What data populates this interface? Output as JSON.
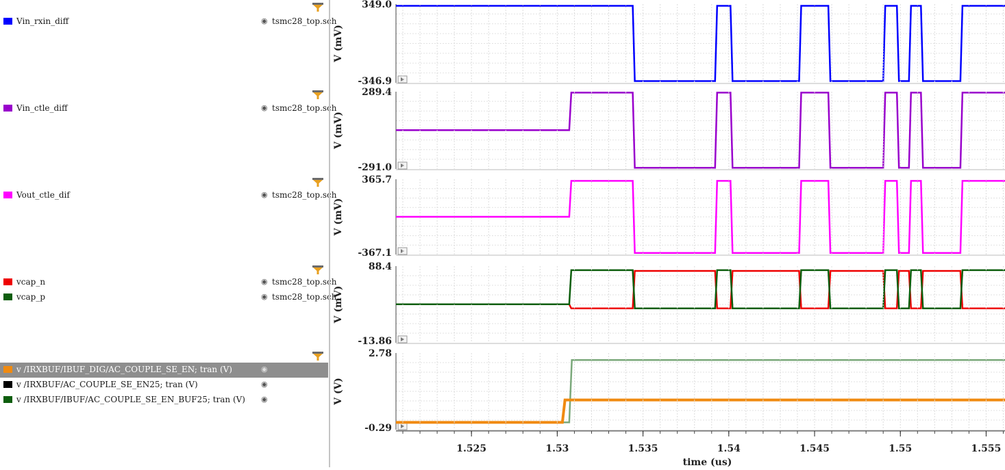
{
  "panels": [
    {
      "filter_icon": "filter-icon",
      "signals": [
        {
          "name": "Vin_rxin_diff",
          "source": "tsmc28_top.sch",
          "color": "#0000ff"
        }
      ]
    },
    {
      "filter_icon": "filter-icon",
      "signals": [
        {
          "name": "Vin_ctle_diff",
          "source": "tsmc28_top.sch",
          "color": "#9900cc"
        }
      ]
    },
    {
      "filter_icon": "filter-icon",
      "signals": [
        {
          "name": "Vout_ctle_dif",
          "source": "tsmc28_top.sch",
          "color": "#ff00ff"
        }
      ]
    },
    {
      "filter_icon": "filter-icon",
      "signals": [
        {
          "name": "vcap_n",
          "source": "tsmc28_top.sch",
          "color": "#ee0000"
        },
        {
          "name": "vcap_p",
          "source": "tsmc28_top.sch",
          "color": "#0d5e0d"
        }
      ]
    },
    {
      "filter_icon": "filter-icon",
      "signals": [
        {
          "name": "v /IRXBUF/IBUF_DIG/AC_COUPLE_SE_EN; tran (V)",
          "source": "",
          "color": "#f08a10",
          "selected": true
        },
        {
          "name": "v /IRXBUF/AC_COUPLE_SE_EN25; tran (V)",
          "source": "",
          "color": "#000000"
        },
        {
          "name": "v /IRXBUF/IBUF/AC_COUPLE_SE_EN_BUF25; tran (V)",
          "source": "",
          "color": "#0d5e0d"
        }
      ]
    }
  ],
  "chart_data": {
    "type": "line",
    "xlabel": "time (us)",
    "xlim": [
      1.5206,
      1.5561
    ],
    "xticks": [
      "1.525",
      "1.53",
      "1.535",
      "1.54",
      "1.545",
      "1.55",
      "1.555"
    ],
    "subplots": [
      {
        "ylabel": "V (mV)",
        "ymax_label": "349.0",
        "ymin_label": "-346.9",
        "ylim": [
          -346.9,
          349.0
        ],
        "series": [
          {
            "name": "Vin_rxin_diff",
            "color": "#0000ff",
            "pattern": "diff",
            "start_level": "high",
            "hi": 334,
            "lo": -332
          }
        ]
      },
      {
        "ylabel": "V (mV)",
        "ymax_label": "289.4",
        "ymin_label": "-291.0",
        "ylim": [
          -291.0,
          289.4
        ],
        "series": [
          {
            "name": "Vin_ctle_diff",
            "color": "#9900cc",
            "pattern": "diff",
            "start_level": "pre",
            "pre": 0,
            "hi": 282,
            "lo": -282
          }
        ]
      },
      {
        "ylabel": "V (mV)",
        "ymax_label": "365.7",
        "ymin_label": "-367.1",
        "ylim": [
          -367.1,
          365.7
        ],
        "series": [
          {
            "name": "Vout_ctle_dif",
            "color": "#ff00ff",
            "pattern": "diff",
            "start_level": "pre",
            "pre": 0,
            "hi": 350,
            "lo": -352
          }
        ]
      },
      {
        "ylabel": "V (mV)",
        "ymax_label": "88.4",
        "ymin_label": "-13.86",
        "ylim": [
          -13.86,
          88.4
        ],
        "series": [
          {
            "name": "vcap_n",
            "color": "#ee0000",
            "pattern": "diff_inv",
            "start_level": "pre",
            "pre": 37.5,
            "hi": 82,
            "lo": 32
          },
          {
            "name": "vcap_p",
            "color": "#0d5e0d",
            "pattern": "diff",
            "start_level": "pre",
            "pre": 37.5,
            "hi": 83,
            "lo": 32
          }
        ]
      },
      {
        "ylabel": "V (V)",
        "ymax_label": "2.78",
        "ymin_label": "-0.29",
        "ylim": [
          -0.29,
          2.78
        ],
        "series": [
          {
            "name": "v /IRXBUF/AC_COUPLE_SE_EN25; tran (V)",
            "color": "#7aa87a",
            "pattern": "step",
            "t_step": 1.5307,
            "pre": 0,
            "post": 2.5
          },
          {
            "name": "v /IRXBUF/IBUF_DIG/AC_COUPLE_SE_EN; tran (V)",
            "color": "#f08a10",
            "pattern": "step",
            "t_step": 1.5303,
            "pre": 0,
            "post": 0.9
          }
        ]
      }
    ],
    "toggle_times": [
      1.5307,
      1.5344,
      1.5392,
      1.5401,
      1.5441,
      1.5458,
      1.549,
      1.5498,
      1.5505,
      1.5512,
      1.5535
    ]
  }
}
